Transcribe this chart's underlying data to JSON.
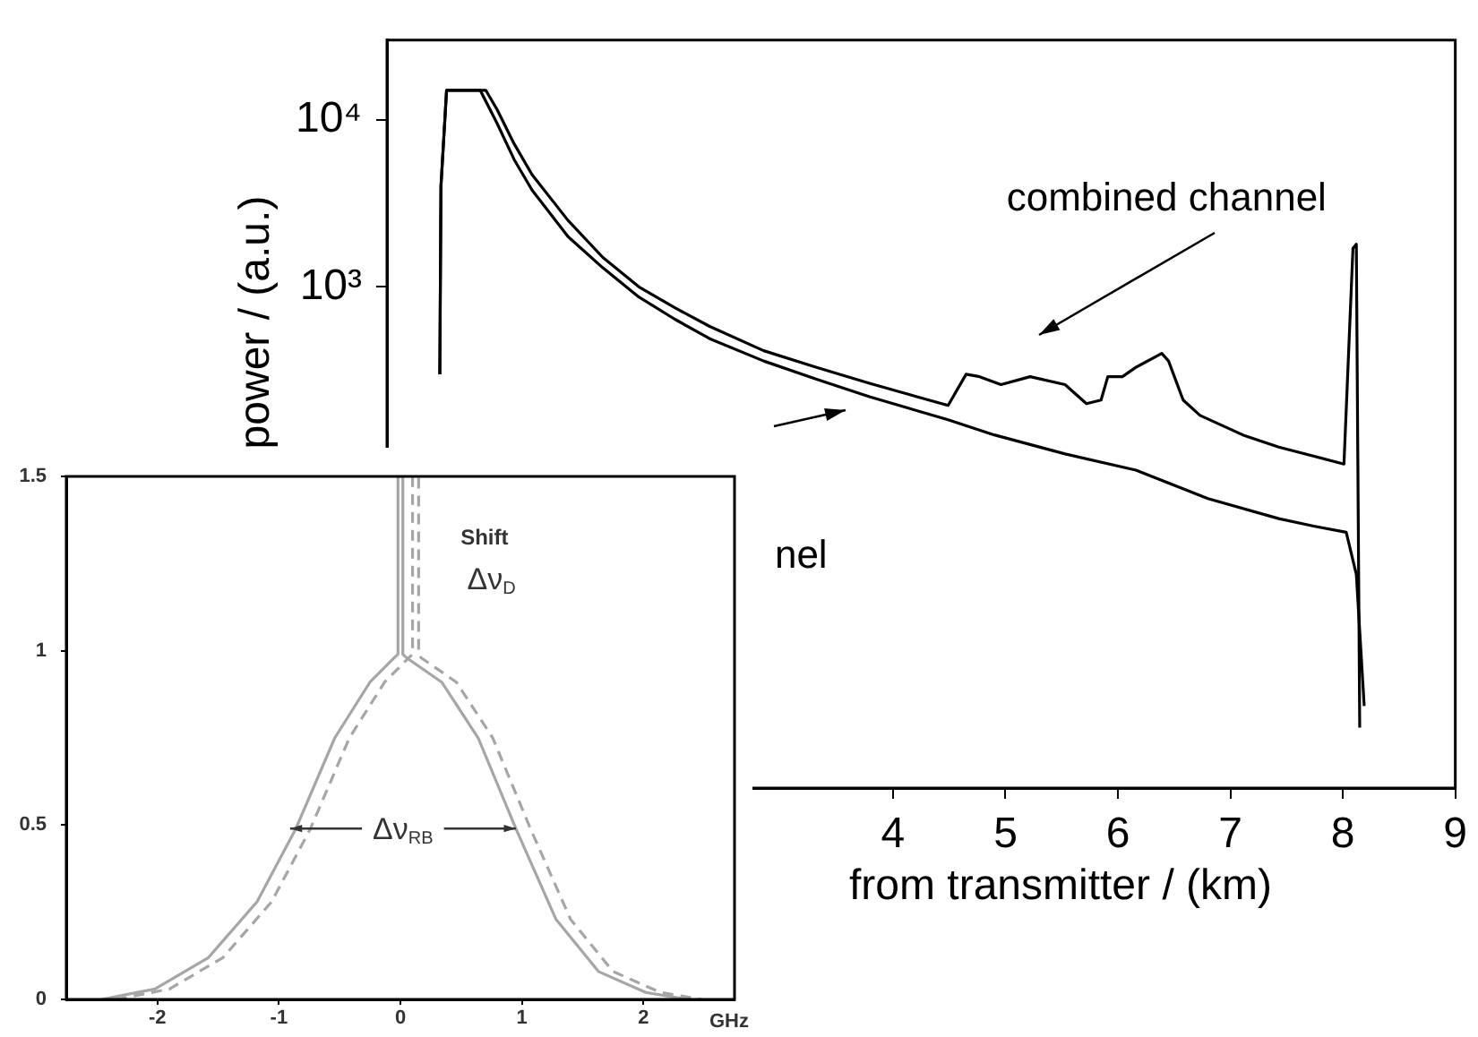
{
  "chart_data": [
    {
      "type": "line",
      "ylabel": "power / (a.u.)",
      "xlabel": "from transmitter / (km)",
      "log": "y",
      "grid": false,
      "legend": false,
      "xlim": [
        -0.5,
        9
      ],
      "xticks": [
        4,
        5,
        6,
        7,
        8,
        9
      ],
      "ylim": [
        1,
        30000
      ],
      "yticks": [
        {
          "value": 10000,
          "label": "10⁴"
        },
        {
          "value": 1000,
          "label": "10³"
        }
      ],
      "annotations": [
        "combined channel",
        "nel"
      ],
      "series": [
        {
          "color": "#000000",
          "line_style": "solid",
          "x": [
            -0.03,
            -0.02,
            0.03,
            0.38,
            0.48,
            0.63,
            0.79,
            1.11,
            1.42,
            1.74,
            2.06,
            2.37,
            2.85,
            3.32,
            3.79,
            4.49,
            4.65,
            4.77,
            4.96,
            5.22,
            5.53,
            5.72,
            5.85,
            5.91,
            6.04,
            6.16,
            6.39,
            6.45,
            6.58,
            6.73,
            7.11,
            7.43,
            8.01,
            8.09,
            8.12,
            8.15
          ],
          "values": [
            300,
            4000,
            15000,
            15000,
            11500,
            7200,
            4700,
            2500,
            1500,
            1000,
            750,
            580,
            415,
            330,
            265,
            195,
            300,
            290,
            260,
            290,
            260,
            200,
            210,
            290,
            290,
            330,
            400,
            360,
            210,
            170,
            130,
            110,
            87,
            1700,
            1800,
            2.3
          ]
        },
        {
          "color": "#000000",
          "line_style": "solid",
          "x": [
            -0.03,
            -0.02,
            0.03,
            0.33,
            0.48,
            0.63,
            0.79,
            1.11,
            1.42,
            1.74,
            2.06,
            2.37,
            2.85,
            3.32,
            3.79,
            4.49,
            4.9,
            5.53,
            6.16,
            6.8,
            7.43,
            7.74,
            8.03,
            8.12,
            8.19
          ],
          "values": [
            300,
            4000,
            15000,
            15000,
            9500,
            5800,
            3800,
            2000,
            1300,
            870,
            640,
            490,
            360,
            280,
            220,
            160,
            130,
            100,
            80,
            54,
            41,
            37,
            34,
            19,
            3.1
          ]
        }
      ]
    },
    {
      "type": "line",
      "xlabel": "GHz",
      "grid": false,
      "legend": false,
      "xlim": [
        -2.75,
        2.75
      ],
      "xticks": [
        -2,
        -1,
        0,
        1,
        2
      ],
      "ylim": [
        0,
        1.5
      ],
      "yticks": [
        0,
        0.5,
        1,
        1.5
      ],
      "annotations": [
        "Shift",
        "Δν$_{D}$",
        {
          "text": "Δν$_{RB}$",
          "x": 0.95,
          "y": 0.49
        }
      ],
      "series": [
        {
          "color": "#a6a6a6",
          "line_style": "solid",
          "x": [
            -2.46,
            -2.02,
            -1.58,
            -1.18,
            -0.86,
            -0.54,
            -0.25,
            -0.05,
            -0.02,
            -0.02,
            0.02,
            0.02,
            0.05,
            0.34,
            0.64,
            0.95,
            1.28,
            1.63,
            2.02,
            2.36
          ],
          "values": [
            0,
            0.03,
            0.12,
            0.28,
            0.49,
            0.75,
            0.91,
            0.98,
            0.99,
            1.5,
            1.5,
            0.99,
            0.98,
            0.91,
            0.75,
            0.49,
            0.23,
            0.08,
            0.02,
            0
          ]
        },
        {
          "color": "#a6a6a6",
          "line_style": "dashed",
          "x": [
            -2.34,
            -1.9,
            -1.46,
            -1.06,
            -0.74,
            -0.42,
            -0.13,
            0.07,
            0.1,
            0.1,
            0.15,
            0.15,
            0.17,
            0.46,
            0.76,
            1.07,
            1.4,
            1.75,
            2.14,
            2.48
          ],
          "values": [
            0,
            0.03,
            0.12,
            0.28,
            0.49,
            0.75,
            0.91,
            0.98,
            0.99,
            1.5,
            1.5,
            0.99,
            0.98,
            0.91,
            0.75,
            0.49,
            0.23,
            0.08,
            0.02,
            0
          ]
        }
      ]
    }
  ]
}
